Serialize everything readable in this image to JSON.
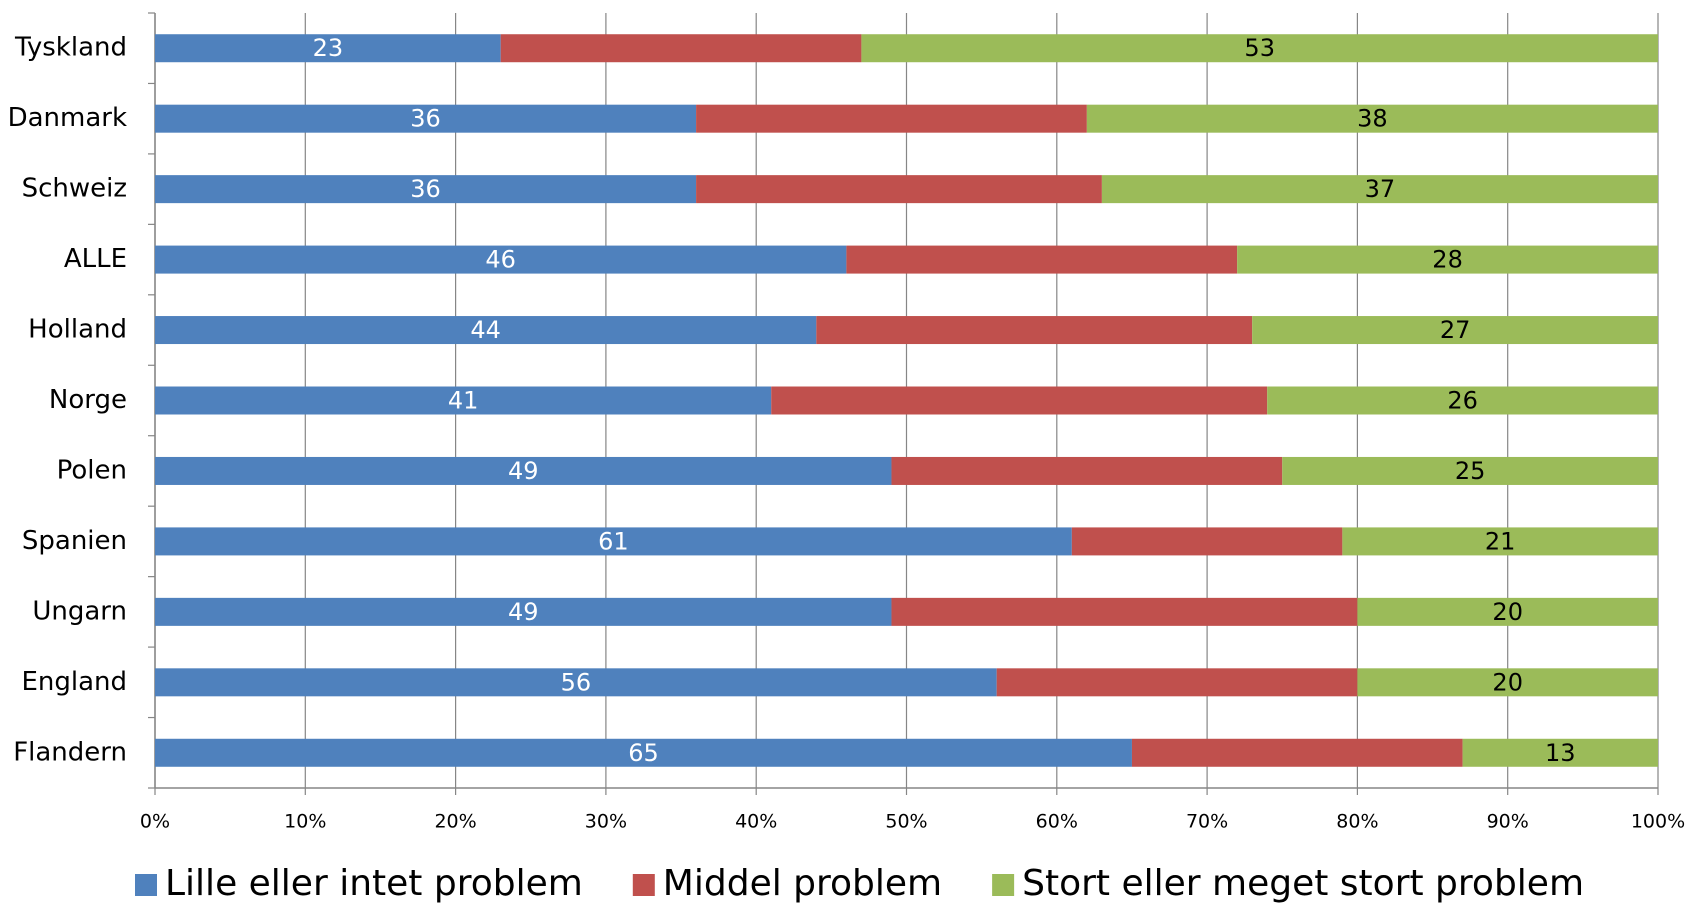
{
  "chart_data": {
    "type": "bar",
    "orientation": "horizontal",
    "stacked": true,
    "categories": [
      "Tyskland",
      "Danmark",
      "Schweiz",
      "ALLE",
      "Holland",
      "Norge",
      "Polen",
      "Spanien",
      "Ungarn",
      "England",
      "Flandern"
    ],
    "series": [
      {
        "name": "Lille eller intet problem",
        "color": "#4f81bd",
        "values": [
          23,
          36,
          36,
          46,
          44,
          41,
          49,
          61,
          49,
          56,
          65
        ],
        "show_labels": true,
        "label_color": "#ffffff"
      },
      {
        "name": "Middel problem",
        "color": "#c0504d",
        "values": [
          24,
          26,
          27,
          26,
          29,
          33,
          26,
          18,
          31,
          24,
          22
        ],
        "show_labels": false
      },
      {
        "name": "Stort eller meget stort problem",
        "color": "#9bbb59",
        "values": [
          53,
          38,
          37,
          28,
          27,
          26,
          25,
          21,
          20,
          20,
          13
        ],
        "show_labels": true,
        "label_color": "#000000"
      }
    ],
    "xlim": [
      0,
      100
    ],
    "xticks": [
      {
        "value": 0,
        "label": "0%"
      },
      {
        "value": 10,
        "label": "10%"
      },
      {
        "value": 20,
        "label": "20%"
      },
      {
        "value": 30,
        "label": "30%"
      },
      {
        "value": 40,
        "label": "40%"
      },
      {
        "value": 50,
        "label": "50%"
      },
      {
        "value": 60,
        "label": "60%"
      },
      {
        "value": 70,
        "label": "70%"
      },
      {
        "value": 80,
        "label": "80%"
      },
      {
        "value": 90,
        "label": "90%"
      },
      {
        "value": 100,
        "label": "100%"
      }
    ],
    "grid": true,
    "legend": "bottom"
  }
}
